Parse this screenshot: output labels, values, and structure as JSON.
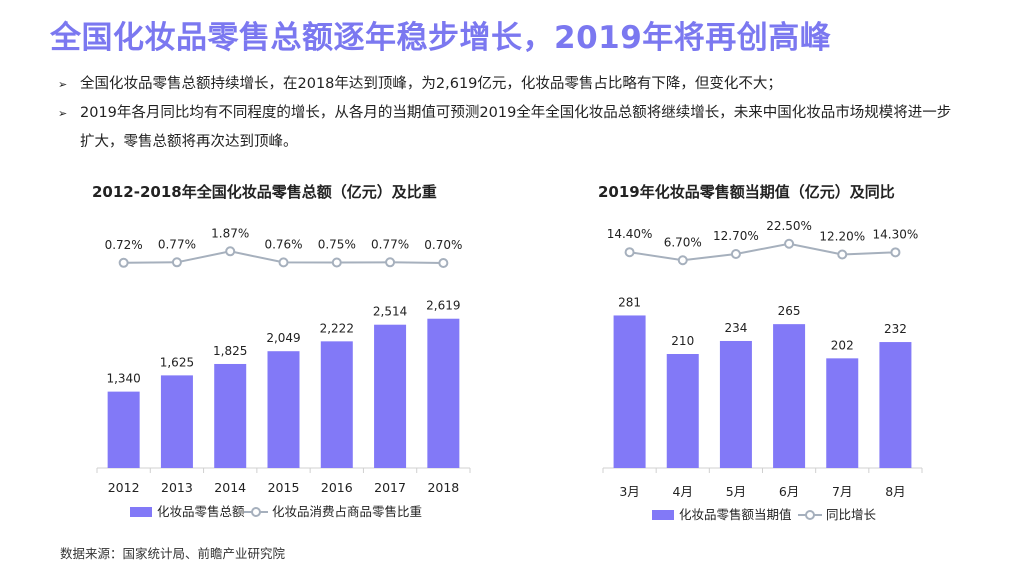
{
  "header": {
    "title": "全国化妆品零售总额逐年稳步增长，2019年将再创高峰"
  },
  "bullets": [
    {
      "icon": "arrow-bullet-icon",
      "text": "全国化妆品零售总额持续增长，在2018年达到顶峰，为2,619亿元，化妆品零售占比略有下降，但变化不大；"
    },
    {
      "icon": "arrow-bullet-icon",
      "text": "2019年各月同比均有不同程度的增长，从各月的当期值可预测2019全年全国化妆品总额将继续增长，未来中国化妆品市场规模将进一步扩大，零售总额将再次达到顶峰。"
    }
  ],
  "colors": {
    "title": "#7b78f0",
    "bar": "#8279f7",
    "line": "#a6b0bd",
    "marker_fill": "#ffffff",
    "marker_stroke": "#a6b0bd",
    "axis": "#d0d0d0"
  },
  "chart_data": [
    {
      "type": "bar",
      "title": "2012-2018年全国化妆品零售总额（亿元）及比重",
      "categories": [
        "2012",
        "2013",
        "2014",
        "2015",
        "2016",
        "2017",
        "2018"
      ],
      "series": [
        {
          "name": "化妆品零售总额",
          "type": "bar",
          "values": [
            1340,
            1625,
            1825,
            2049,
            2222,
            2514,
            2619
          ],
          "labels": [
            "1,340",
            "1,625",
            "1,825",
            "2,049",
            "2,222",
            "2,514",
            "2,619"
          ]
        },
        {
          "name": "化妆品消费占商品零售比重",
          "type": "line",
          "values": [
            0.72,
            0.77,
            1.87,
            0.76,
            0.75,
            0.77,
            0.7
          ],
          "labels": [
            "0.72%",
            "0.77%",
            "1.87%",
            "0.76%",
            "0.75%",
            "0.77%",
            "0.70%"
          ]
        }
      ],
      "ylim": [
        0,
        4000
      ],
      "line_ylim": [
        -3,
        3
      ],
      "legend": "bottom"
    },
    {
      "type": "bar",
      "title": "2019年化妆品零售额当期值（亿元）及同比",
      "categories": [
        "3月",
        "4月",
        "5月",
        "6月",
        "7月",
        "8月"
      ],
      "series": [
        {
          "name": "化妆品零售额当期值",
          "type": "bar",
          "values": [
            281,
            210,
            234,
            265,
            202,
            232
          ],
          "labels": [
            "281",
            "210",
            "234",
            "265",
            "202",
            "232"
          ]
        },
        {
          "name": "同比增长",
          "type": "line",
          "values": [
            14.4,
            6.7,
            12.7,
            22.5,
            12.2,
            14.3
          ],
          "labels": [
            "14.40%",
            "6.70%",
            "12.70%",
            "22.50%",
            "12.20%",
            "14.30%"
          ]
        }
      ],
      "ylim": [
        0,
        420
      ],
      "line_ylim": [
        -60,
        50
      ],
      "legend": "bottom"
    }
  ],
  "footer": {
    "source": "数据来源：国家统计局、前瞻产业研究院"
  }
}
